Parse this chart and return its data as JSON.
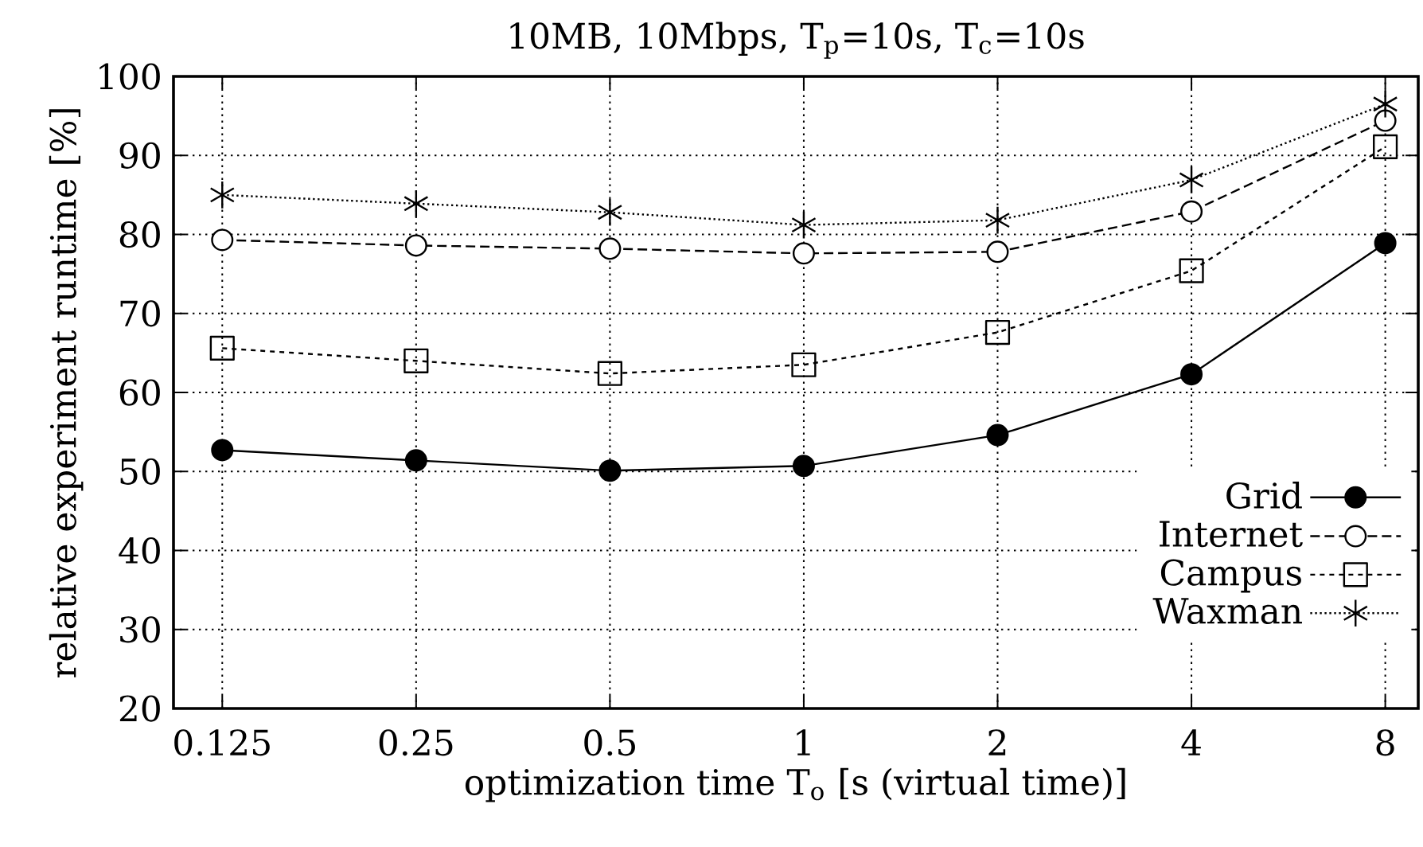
{
  "chart_data": {
    "type": "line",
    "title": "10MB, 10Mbps, T$_{p}$=10s, T$_{c}$=10s",
    "xlabel": "optimization time T$_{o}$ [s (virtual time)]",
    "ylabel": "relative experiment runtime [%]",
    "x": [
      0.125,
      0.25,
      0.5,
      1,
      2,
      4,
      8
    ],
    "xlim": [
      0.105,
      9
    ],
    "ylim": [
      20,
      100
    ],
    "xticks": [
      0.125,
      0.25,
      0.5,
      1,
      2,
      4,
      8
    ],
    "yticks": [
      20,
      30,
      40,
      50,
      60,
      70,
      80,
      90,
      100
    ],
    "log": "x",
    "grid": true,
    "legend": "bottom right",
    "series": [
      {
        "name": "Grid",
        "color": "#000000",
        "marker": "circle",
        "line_style": "solid",
        "values": [
          52.7,
          51.4,
          50.1,
          50.7,
          54.6,
          62.3,
          78.9
        ]
      },
      {
        "name": "Internet",
        "color": "#000000",
        "marker": "circle",
        "line_style": "dashed",
        "values": [
          79.3,
          78.6,
          78.2,
          77.6,
          77.8,
          82.9,
          94.4
        ]
      },
      {
        "name": "Campus",
        "color": "#000000",
        "marker": "square",
        "line_style": "dashed",
        "values": [
          65.6,
          64.0,
          62.4,
          63.5,
          67.6,
          75.4,
          91.1
        ]
      },
      {
        "name": "Waxman",
        "color": "#000000",
        "marker": "cross",
        "line_style": "dotted",
        "values": [
          85.0,
          83.9,
          82.8,
          81.2,
          81.8,
          86.9,
          96.5
        ]
      }
    ]
  }
}
